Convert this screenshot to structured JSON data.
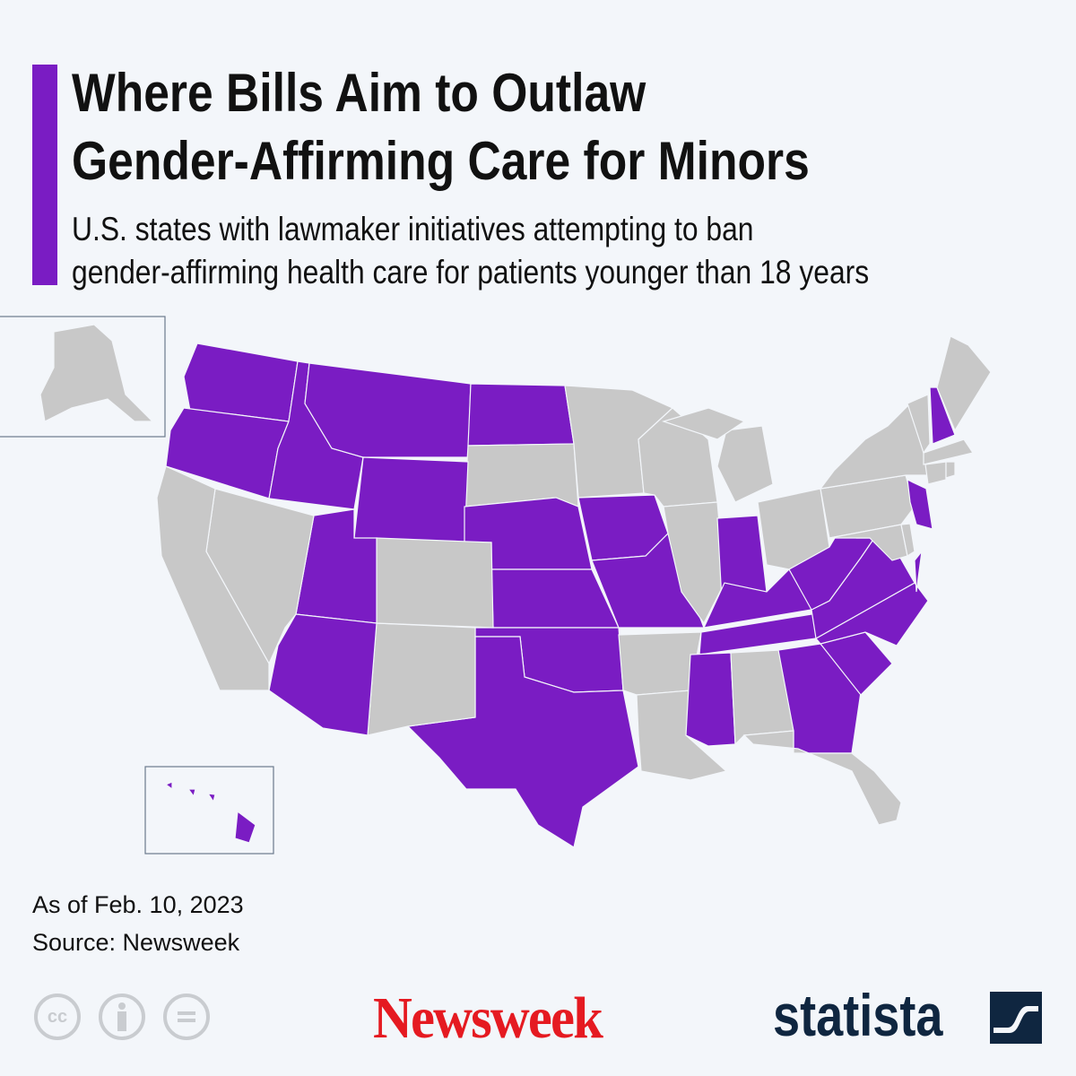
{
  "title": {
    "line1": "Where Bills Aim to Outlaw",
    "line2": "Gender-Affirming Care for Minors"
  },
  "subtitle": {
    "line1": "U.S. states with lawmaker initiatives attempting to ban",
    "line2": "gender-affirming health care for patients younger than 18 years"
  },
  "map": {
    "colors": {
      "highlighted": "#7a1cc3",
      "other": "#c8c8c8",
      "border": "#f3f6fa",
      "accent": "#7a1cc3"
    },
    "highlighted_states": [
      "WA",
      "OR",
      "ID",
      "MT",
      "ND",
      "WY",
      "UT",
      "AZ",
      "NE",
      "KS",
      "OK",
      "TX",
      "IA",
      "MO",
      "IN",
      "KY",
      "TN",
      "MS",
      "WV",
      "VA",
      "NC",
      "SC",
      "GA",
      "NH",
      "NJ",
      "HI"
    ],
    "other_states": [
      "CA",
      "NV",
      "CO",
      "NM",
      "SD",
      "MN",
      "WI",
      "IL",
      "MI",
      "OH",
      "AR",
      "LA",
      "AL",
      "FL",
      "PA",
      "NY",
      "MD",
      "DE",
      "VT",
      "ME",
      "MA",
      "CT",
      "RI",
      "AK"
    ]
  },
  "footer": {
    "date_note": "As of Feb. 10, 2023",
    "source_note": "Source: Newsweek",
    "license_icons": [
      "cc-icon",
      "attribution-icon",
      "no-derivatives-icon"
    ],
    "cc_label": "cc",
    "publisher_logo": "Newsweek",
    "brand_logo": "statista"
  }
}
